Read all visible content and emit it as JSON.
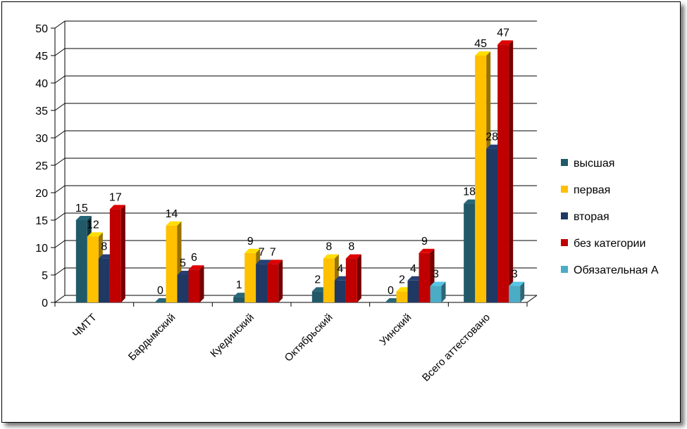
{
  "chart_data": {
    "type": "bar",
    "title": "",
    "xlabel": "",
    "ylabel": "",
    "ylim": [
      0,
      50
    ],
    "y_ticks": [
      0,
      5,
      10,
      15,
      20,
      25,
      30,
      35,
      40,
      45,
      50
    ],
    "grid": true,
    "legend_position": "right",
    "categories": [
      "ЧМТТ",
      "Бардымский",
      "Куединский",
      "Октябрьский",
      "Уинский",
      "Всего аттестовано"
    ],
    "series": [
      {
        "name": "высшая",
        "color": "#215968",
        "values": [
          15,
          0,
          1,
          2,
          0,
          18
        ]
      },
      {
        "name": "первая",
        "color": "#FFC000",
        "values": [
          12,
          14,
          9,
          8,
          2,
          45
        ]
      },
      {
        "name": "вторая",
        "color": "#1F3864",
        "values": [
          8,
          5,
          7,
          4,
          4,
          28
        ]
      },
      {
        "name": "без категории",
        "color": "#C00000",
        "values": [
          17,
          6,
          7,
          8,
          9,
          47
        ]
      },
      {
        "name": "Обязательная А",
        "color": "#4BACC6",
        "values": [
          null,
          null,
          null,
          null,
          3,
          3
        ]
      }
    ]
  }
}
